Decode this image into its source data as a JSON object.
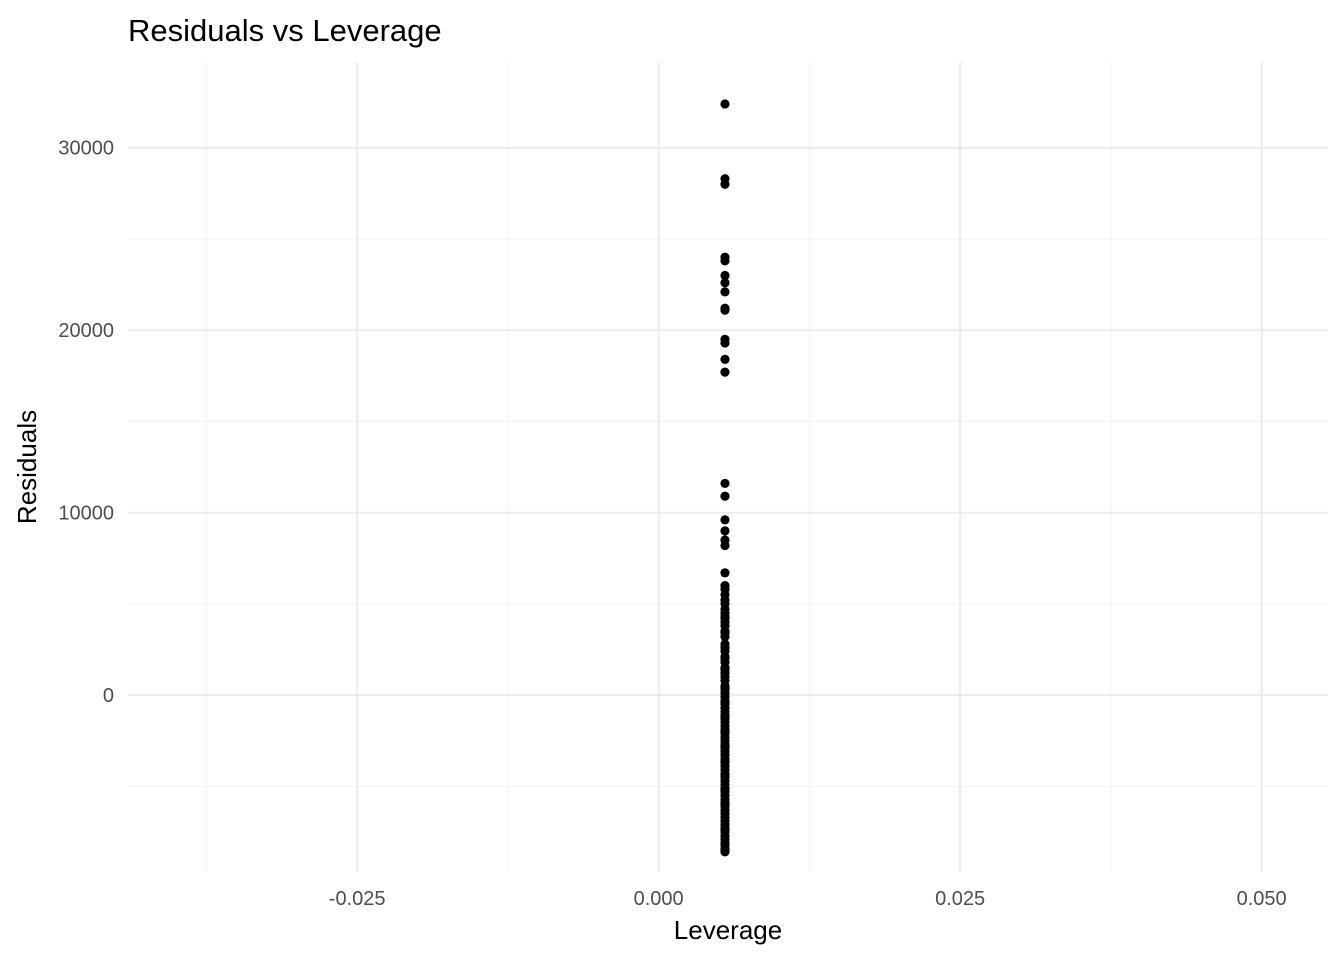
{
  "chart_data": {
    "type": "scatter",
    "title": "Residuals vs Leverage",
    "xlabel": "Leverage",
    "ylabel": "Residuals",
    "xlim": [
      -0.044,
      0.0555
    ],
    "ylim": [
      -9700,
      34700
    ],
    "x_ticks": [
      -0.025,
      0.0,
      0.025,
      0.05
    ],
    "x_tick_labels": [
      "-0.025",
      "0.000",
      "0.025",
      "0.050"
    ],
    "x_minor_ticks": [
      -0.0375,
      -0.0125,
      0.0125,
      0.0375
    ],
    "y_ticks": [
      0,
      10000,
      20000,
      30000
    ],
    "y_tick_labels": [
      "0",
      "10000",
      "20000",
      "30000"
    ],
    "y_minor_ticks": [
      -5000,
      5000,
      15000,
      25000
    ],
    "grid": true,
    "point_color": "#000000",
    "series": [
      {
        "x": [
          0.0055,
          0.0055,
          0.0055,
          0.0055,
          0.0055,
          0.0055,
          0.0055,
          0.0055,
          0.0055,
          0.0055,
          0.0055,
          0.0055,
          0.0055,
          0.0055,
          0.0055,
          0.0055,
          0.0055,
          0.0055,
          0.0055,
          0.0055,
          0.0055,
          0.0055,
          0.0055,
          0.0055,
          0.0055,
          0.0055,
          0.0055,
          0.0055,
          0.0055,
          0.0055,
          0.0055,
          0.0055,
          0.0055,
          0.0055,
          0.0055,
          0.0055,
          0.0055,
          0.0055,
          0.0055,
          0.0055,
          0.0055,
          0.0055,
          0.0055,
          0.0055,
          0.0055,
          0.0055,
          0.0055,
          0.0055,
          0.0055,
          0.0055,
          0.0055,
          0.0055,
          0.0055,
          0.0055,
          0.0055,
          0.0055,
          0.0055,
          0.0055,
          0.0055,
          0.0055,
          0.0055,
          0.0055,
          0.0055,
          0.0055,
          0.0055,
          0.0055,
          0.0055,
          0.0055,
          0.0055,
          0.0055,
          0.0055,
          0.0055,
          0.0055,
          0.0055,
          0.0055,
          0.0055,
          0.0055,
          0.0055,
          0.0055,
          0.0055,
          0.0055,
          0.0055,
          0.0055,
          0.0055,
          0.0055,
          0.0055,
          0.0055,
          0.0055,
          0.0055,
          0.0055,
          0.0055,
          0.0055,
          0.0055,
          0.0055,
          0.0055,
          0.0055,
          0.0055,
          0.0055,
          0.0055,
          0.0055,
          0.0055,
          0.0055,
          0.0055,
          0.0055
        ],
        "y": [
          32400,
          28300,
          28000,
          24000,
          23800,
          23000,
          22600,
          22100,
          21200,
          21100,
          19500,
          19300,
          18400,
          17700,
          11600,
          10900,
          9600,
          9000,
          8500,
          8200,
          6700,
          6000,
          5800,
          5500,
          5200,
          5000,
          4700,
          4500,
          4200,
          4000,
          3800,
          3500,
          3200,
          2800,
          2600,
          2400,
          2100,
          1800,
          1500,
          1200,
          1000,
          800,
          500,
          300,
          100,
          -100,
          -300,
          -500,
          -700,
          -900,
          -1100,
          -1300,
          -1500,
          -1700,
          -1900,
          -2100,
          -2300,
          -2500,
          -2700,
          -2900,
          -3100,
          -3300,
          -3500,
          -3700,
          -3900,
          -4100,
          -4300,
          -4500,
          -4700,
          -4900,
          -5100,
          -5300,
          -5500,
          -5700,
          -5900,
          -6100,
          -6300,
          -6500,
          -6700,
          -6900,
          -7100,
          -7300,
          -7500,
          -7700,
          -7900,
          -8100,
          -8200,
          -8400,
          -8500,
          -7400,
          -6000,
          -5200,
          -4400,
          -3600,
          -2800,
          -2000,
          -1200,
          -400,
          400,
          1400,
          2000,
          3400,
          4300,
          -8600
        ]
      }
    ]
  }
}
